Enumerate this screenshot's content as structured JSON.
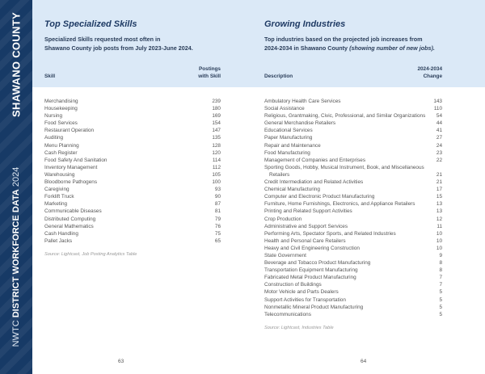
{
  "sidebar": {
    "county": "SHAWANO COUNTY",
    "org": "NWTC",
    "title": "DISTRICT WORKFORCE DATA",
    "year": "2024"
  },
  "skills": {
    "title": "Top Specialized Skills",
    "subtitle_line1": "Specialized Skills requested most often in",
    "subtitle_line2": "Shawano County job posts from July 2023-June 2024.",
    "col_name": "Skill",
    "col_value_line1": "Postings",
    "col_value_line2": "with Skill",
    "rows": [
      {
        "name": "Merchandising",
        "value": "239"
      },
      {
        "name": "Housekeeping",
        "value": "180"
      },
      {
        "name": "Nursing",
        "value": "169"
      },
      {
        "name": "Food Services",
        "value": "154"
      },
      {
        "name": "Restaurant Operation",
        "value": "147"
      },
      {
        "name": "Auditing",
        "value": "135"
      },
      {
        "name": "Menu Planning",
        "value": "128"
      },
      {
        "name": "Cash Register",
        "value": "120"
      },
      {
        "name": "Food Safety And Sanitation",
        "value": "114"
      },
      {
        "name": "Inventory Management",
        "value": "112"
      },
      {
        "name": "Warehousing",
        "value": "105"
      },
      {
        "name": "Bloodborne Pathogens",
        "value": "100"
      },
      {
        "name": "Caregiving",
        "value": "93"
      },
      {
        "name": "Forklift Truck",
        "value": "90"
      },
      {
        "name": "Marketing",
        "value": "87"
      },
      {
        "name": "Communicable Diseases",
        "value": "81"
      },
      {
        "name": "Distributed Computing",
        "value": "79"
      },
      {
        "name": "General Mathematics",
        "value": "76"
      },
      {
        "name": "Cash Handling",
        "value": "75"
      },
      {
        "name": "Pallet Jacks",
        "value": "65"
      }
    ],
    "source": "Source: Lightcast, Job Posting Analytics Table",
    "page": "63"
  },
  "industries": {
    "title": "Growing Industries",
    "subtitle_line1": "Top industries based on the projected job increases from",
    "subtitle_line2": "2024-2034 in Shawano County ",
    "subtitle_italic": "(showing number of new jobs).",
    "col_name": "Description",
    "col_value_line1": "2024-2034",
    "col_value_line2": "Change",
    "rows": [
      {
        "name": "Ambulatory Health Care Services",
        "value": "143"
      },
      {
        "name": "Social Assistance",
        "value": "110"
      },
      {
        "name": "Religious, Grantmaking, Civic, Professional, and Similar Organizations",
        "value": "54"
      },
      {
        "name": "General Merchandise Retailers",
        "value": "44"
      },
      {
        "name": "Educational Services",
        "value": "41"
      },
      {
        "name": "Paper Manufacturing",
        "value": "27"
      },
      {
        "name": "Repair and Maintenance",
        "value": "24"
      },
      {
        "name": "Food Manufacturing",
        "value": "23"
      },
      {
        "name": "Management of Companies and Enterprises",
        "value": "22"
      },
      {
        "name": "Sporting Goods, Hobby, Musical Instrument, Book, and Miscellaneous Retailers",
        "value": "21"
      },
      {
        "name": "Credit Intermediation and Related Activities",
        "value": "21"
      },
      {
        "name": "Chemical Manufacturing",
        "value": "17"
      },
      {
        "name": "Computer and Electronic Product Manufacturing",
        "value": "15"
      },
      {
        "name": "Furniture, Home Furnishings, Electronics, and Appliance Retailers",
        "value": "13"
      },
      {
        "name": "Printing and Related Support Activities",
        "value": "13"
      },
      {
        "name": "Crop Production",
        "value": "12"
      },
      {
        "name": "Administrative and Support Services",
        "value": "11"
      },
      {
        "name": "Performing Arts, Spectator Sports, and Related Industries",
        "value": "10"
      },
      {
        "name": "Health and Personal Care Retailers",
        "value": "10"
      },
      {
        "name": "Heavy and Civil Engineering Construction",
        "value": "10"
      },
      {
        "name": "State Government",
        "value": "9"
      },
      {
        "name": "Beverage and Tobacco Product Manufacturing",
        "value": "8"
      },
      {
        "name": "Transportation Equipment Manufacturing",
        "value": "8"
      },
      {
        "name": "Fabricated Metal Product Manufacturing",
        "value": "7"
      },
      {
        "name": "Construction of Buildings",
        "value": "7"
      },
      {
        "name": "Motor Vehicle and Parts Dealers",
        "value": "5"
      },
      {
        "name": "Support Activities for Transportation",
        "value": "5"
      },
      {
        "name": "Nonmetallic Mineral Product Manufacturing",
        "value": "5"
      },
      {
        "name": "Telecommunications",
        "value": "5"
      }
    ],
    "source": "Source: Lightcast, Industries Table",
    "page": "64"
  }
}
